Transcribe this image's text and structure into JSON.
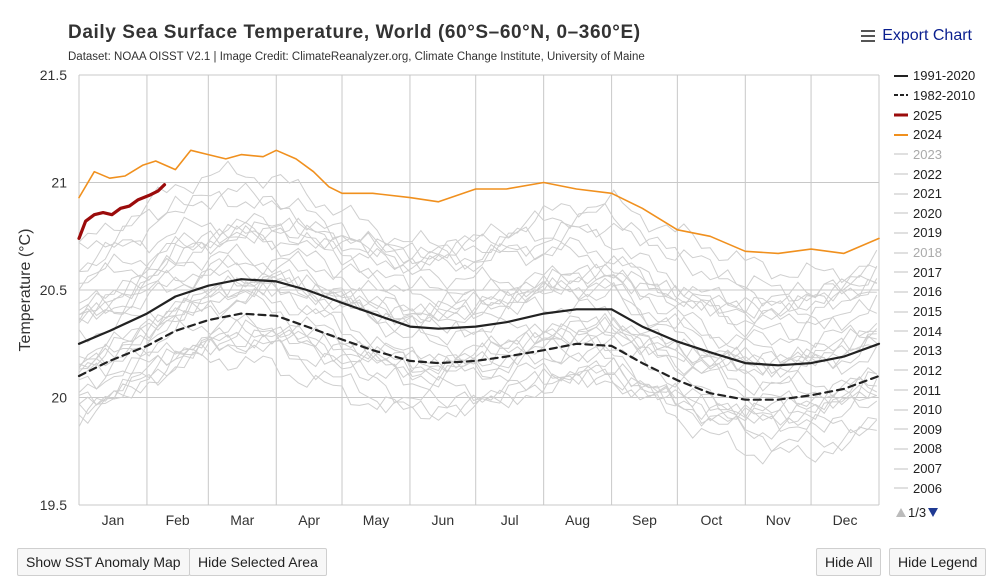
{
  "export_label": "Export Chart",
  "buttons": {
    "anomaly_map": "Show SST Anomaly Map",
    "hide_area": "Hide Selected Area",
    "hide_all": "Hide All",
    "hide_legend": "Hide Legend"
  },
  "legend_pager": "1/3",
  "colors": {
    "y2025": "#9b0b0b",
    "y2024": "#f0901e",
    "climatology": "#222222",
    "past_years": "#cccccc"
  },
  "chart_data": {
    "type": "line",
    "title": "Daily Sea Surface Temperature, World (60°S–60°N, 0–360°E)",
    "subtitle": "Dataset: NOAA OISST V2.1 | Image Credit: ClimateReanalyzer.org, Climate Change Institute, University of Maine",
    "xlabel": "",
    "ylabel": "Temperature (°C)",
    "ylim": [
      19.5,
      21.5
    ],
    "yticks": [
      "19.5",
      "20",
      "20.5",
      "21",
      "21.5"
    ],
    "xlim": [
      1,
      366
    ],
    "month_boundaries": [
      1,
      32,
      60,
      91,
      121,
      152,
      182,
      213,
      244,
      274,
      305,
      335,
      366
    ],
    "month_labels": [
      "Jan",
      "Feb",
      "Mar",
      "Apr",
      "May",
      "Jun",
      "Jul",
      "Aug",
      "Sep",
      "Oct",
      "Nov",
      "Dec"
    ],
    "legend": [
      {
        "label": "1991-2020",
        "style": "solid-black"
      },
      {
        "label": "1982-2010",
        "style": "dashed-black"
      },
      {
        "label": "2025",
        "style": "red"
      },
      {
        "label": "2024",
        "style": "orange"
      },
      {
        "label": "2023",
        "style": "gray-hidden"
      },
      {
        "label": "2022",
        "style": "gray"
      },
      {
        "label": "2021",
        "style": "gray"
      },
      {
        "label": "2020",
        "style": "gray"
      },
      {
        "label": "2019",
        "style": "gray"
      },
      {
        "label": "2018",
        "style": "gray-hidden"
      },
      {
        "label": "2017",
        "style": "gray"
      },
      {
        "label": "2016",
        "style": "gray"
      },
      {
        "label": "2015",
        "style": "gray"
      },
      {
        "label": "2014",
        "style": "gray"
      },
      {
        "label": "2013",
        "style": "gray"
      },
      {
        "label": "2012",
        "style": "gray"
      },
      {
        "label": "2011",
        "style": "gray"
      },
      {
        "label": "2010",
        "style": "gray"
      },
      {
        "label": "2009",
        "style": "gray"
      },
      {
        "label": "2008",
        "style": "gray"
      },
      {
        "label": "2007",
        "style": "gray"
      },
      {
        "label": "2006",
        "style": "gray"
      }
    ],
    "series": [
      {
        "name": "1991-2020",
        "dash": false,
        "color": "#222222",
        "x": [
          1,
          15,
          32,
          45,
          60,
          75,
          91,
          105,
          121,
          135,
          152,
          165,
          182,
          196,
          213,
          228,
          244,
          258,
          274,
          289,
          305,
          320,
          335,
          350,
          366
        ],
        "y": [
          20.25,
          20.31,
          20.39,
          20.47,
          20.52,
          20.55,
          20.54,
          20.5,
          20.44,
          20.39,
          20.33,
          20.32,
          20.33,
          20.35,
          20.39,
          20.41,
          20.41,
          20.33,
          20.26,
          20.21,
          20.16,
          20.15,
          20.16,
          20.19,
          20.25
        ]
      },
      {
        "name": "1982-2010",
        "dash": true,
        "color": "#222222",
        "x": [
          1,
          15,
          32,
          45,
          60,
          75,
          91,
          105,
          121,
          135,
          152,
          165,
          182,
          196,
          213,
          228,
          244,
          258,
          274,
          289,
          305,
          320,
          335,
          350,
          366
        ],
        "y": [
          20.1,
          20.17,
          20.24,
          20.31,
          20.36,
          20.39,
          20.38,
          20.33,
          20.27,
          20.22,
          20.17,
          20.16,
          20.17,
          20.19,
          20.22,
          20.25,
          20.24,
          20.16,
          20.08,
          20.02,
          19.99,
          19.99,
          20.01,
          20.04,
          20.1
        ]
      },
      {
        "name": "2024",
        "dash": false,
        "color": "#f0901e",
        "x": [
          1,
          8,
          15,
          22,
          30,
          36,
          45,
          52,
          60,
          68,
          75,
          85,
          91,
          100,
          108,
          115,
          121,
          135,
          152,
          165,
          182,
          196,
          213,
          228,
          244,
          258,
          274,
          289,
          305,
          320,
          335,
          350,
          366
        ],
        "y": [
          20.93,
          21.05,
          21.02,
          21.03,
          21.08,
          21.1,
          21.06,
          21.15,
          21.13,
          21.11,
          21.13,
          21.12,
          21.15,
          21.11,
          21.05,
          20.98,
          20.95,
          20.95,
          20.93,
          20.91,
          20.97,
          20.97,
          21.0,
          20.97,
          20.95,
          20.88,
          20.78,
          20.75,
          20.68,
          20.67,
          20.69,
          20.67,
          20.74
        ]
      },
      {
        "name": "2025",
        "dash": false,
        "color": "#9b0b0b",
        "x": [
          1,
          4,
          8,
          12,
          16,
          20,
          24,
          28,
          33,
          37,
          40
        ],
        "y": [
          20.74,
          20.82,
          20.85,
          20.86,
          20.85,
          20.88,
          20.89,
          20.92,
          20.94,
          20.96,
          20.99
        ]
      }
    ]
  }
}
